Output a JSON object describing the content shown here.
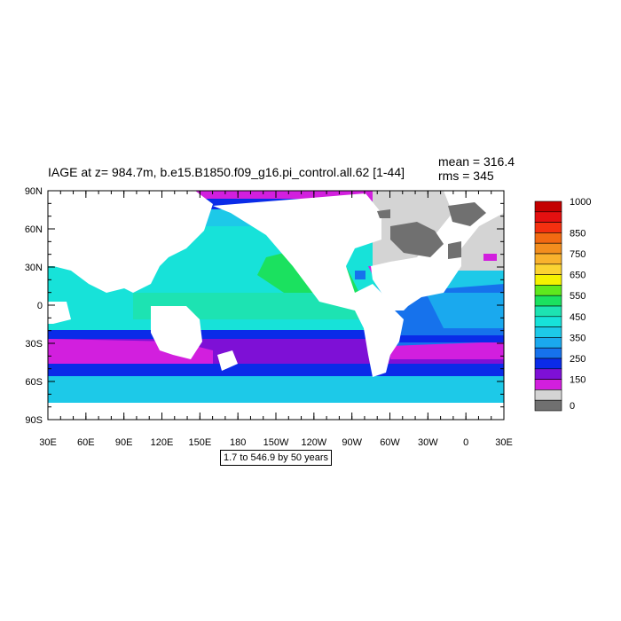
{
  "header": {
    "title": "IAGE at z= 984.7m, b.e15.B1850.f09_g16.pi_control.all.62 [1-44]",
    "mean": "mean = 316.4",
    "rms": "rms = 345"
  },
  "axes": {
    "lat_labels": [
      "90N",
      "60N",
      "30N",
      "0",
      "30S",
      "60S",
      "90S"
    ],
    "lon_labels": [
      "30E",
      "60E",
      "90E",
      "120E",
      "150E",
      "180",
      "150W",
      "120W",
      "90W",
      "60W",
      "30W",
      "0",
      "30E"
    ]
  },
  "colorbar": {
    "labels": [
      "1000",
      "850",
      "750",
      "650",
      "550",
      "450",
      "350",
      "250",
      "150",
      "0"
    ],
    "colors": [
      "#C40000",
      "#E41010",
      "#F43010",
      "#F26A12",
      "#F38E1E",
      "#F9B22D",
      "#FBD332",
      "#F5F200",
      "#5FE81D",
      "#1BE15F",
      "#1DE3B2",
      "#17E2D9",
      "#1DC9E8",
      "#1AA9EE",
      "#1672EC",
      "#0A2BE8",
      "#7E10D6",
      "#D21FDE",
      "#D4D4D4",
      "#707070"
    ]
  },
  "range_note": "1.7 to 546.9 by 50 years",
  "colors": {
    "land": "#ffffff",
    "missing": "#707070",
    "young": "#D4D4D4"
  }
}
